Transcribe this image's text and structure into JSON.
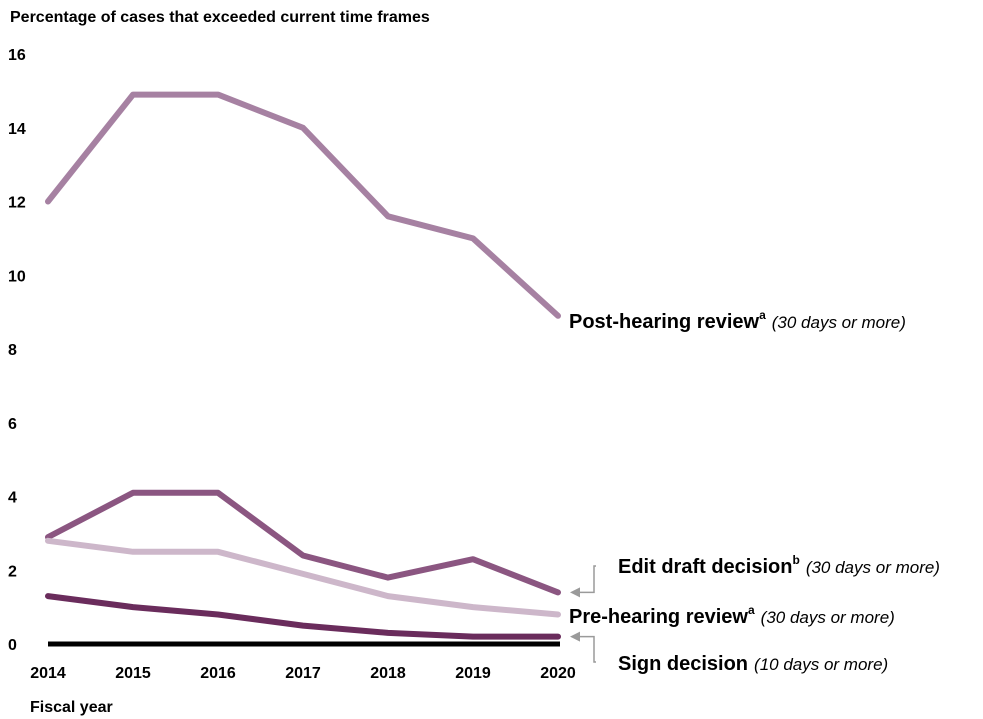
{
  "chart_data": {
    "type": "line",
    "title": "",
    "ylabel": "Percentage of cases that exceeded current time frames",
    "xlabel": "Fiscal year",
    "x": [
      "2014",
      "2015",
      "2016",
      "2017",
      "2018",
      "2019",
      "2020"
    ],
    "yticks": [
      "0",
      "2",
      "4",
      "6",
      "8",
      "10",
      "12",
      "14",
      "16"
    ],
    "ylim": [
      0,
      16
    ],
    "grid": false,
    "legend": "direct labels at line ends",
    "series": [
      {
        "name": "Post-hearing review",
        "superscript": "a",
        "note": "(30 days or more)",
        "color": "#a681a2",
        "values": [
          12.0,
          14.9,
          14.9,
          14.0,
          11.6,
          11.0,
          8.9
        ]
      },
      {
        "name": "Edit draft decision",
        "superscript": "b",
        "note": "(30 days or more)",
        "color": "#8b5681",
        "values": [
          2.9,
          4.1,
          4.1,
          2.4,
          1.8,
          2.3,
          1.4
        ]
      },
      {
        "name": "Pre-hearing review",
        "superscript": "a",
        "note": "(30 days or more)",
        "color": "#cdb7ca",
        "values": [
          2.8,
          2.5,
          2.5,
          1.9,
          1.3,
          1.0,
          0.8
        ]
      },
      {
        "name": "Sign decision",
        "superscript": "",
        "note": "(10 days or more)",
        "color": "#6a2c5c",
        "values": [
          1.3,
          1.0,
          0.8,
          0.5,
          0.3,
          0.2,
          0.2
        ]
      }
    ]
  }
}
